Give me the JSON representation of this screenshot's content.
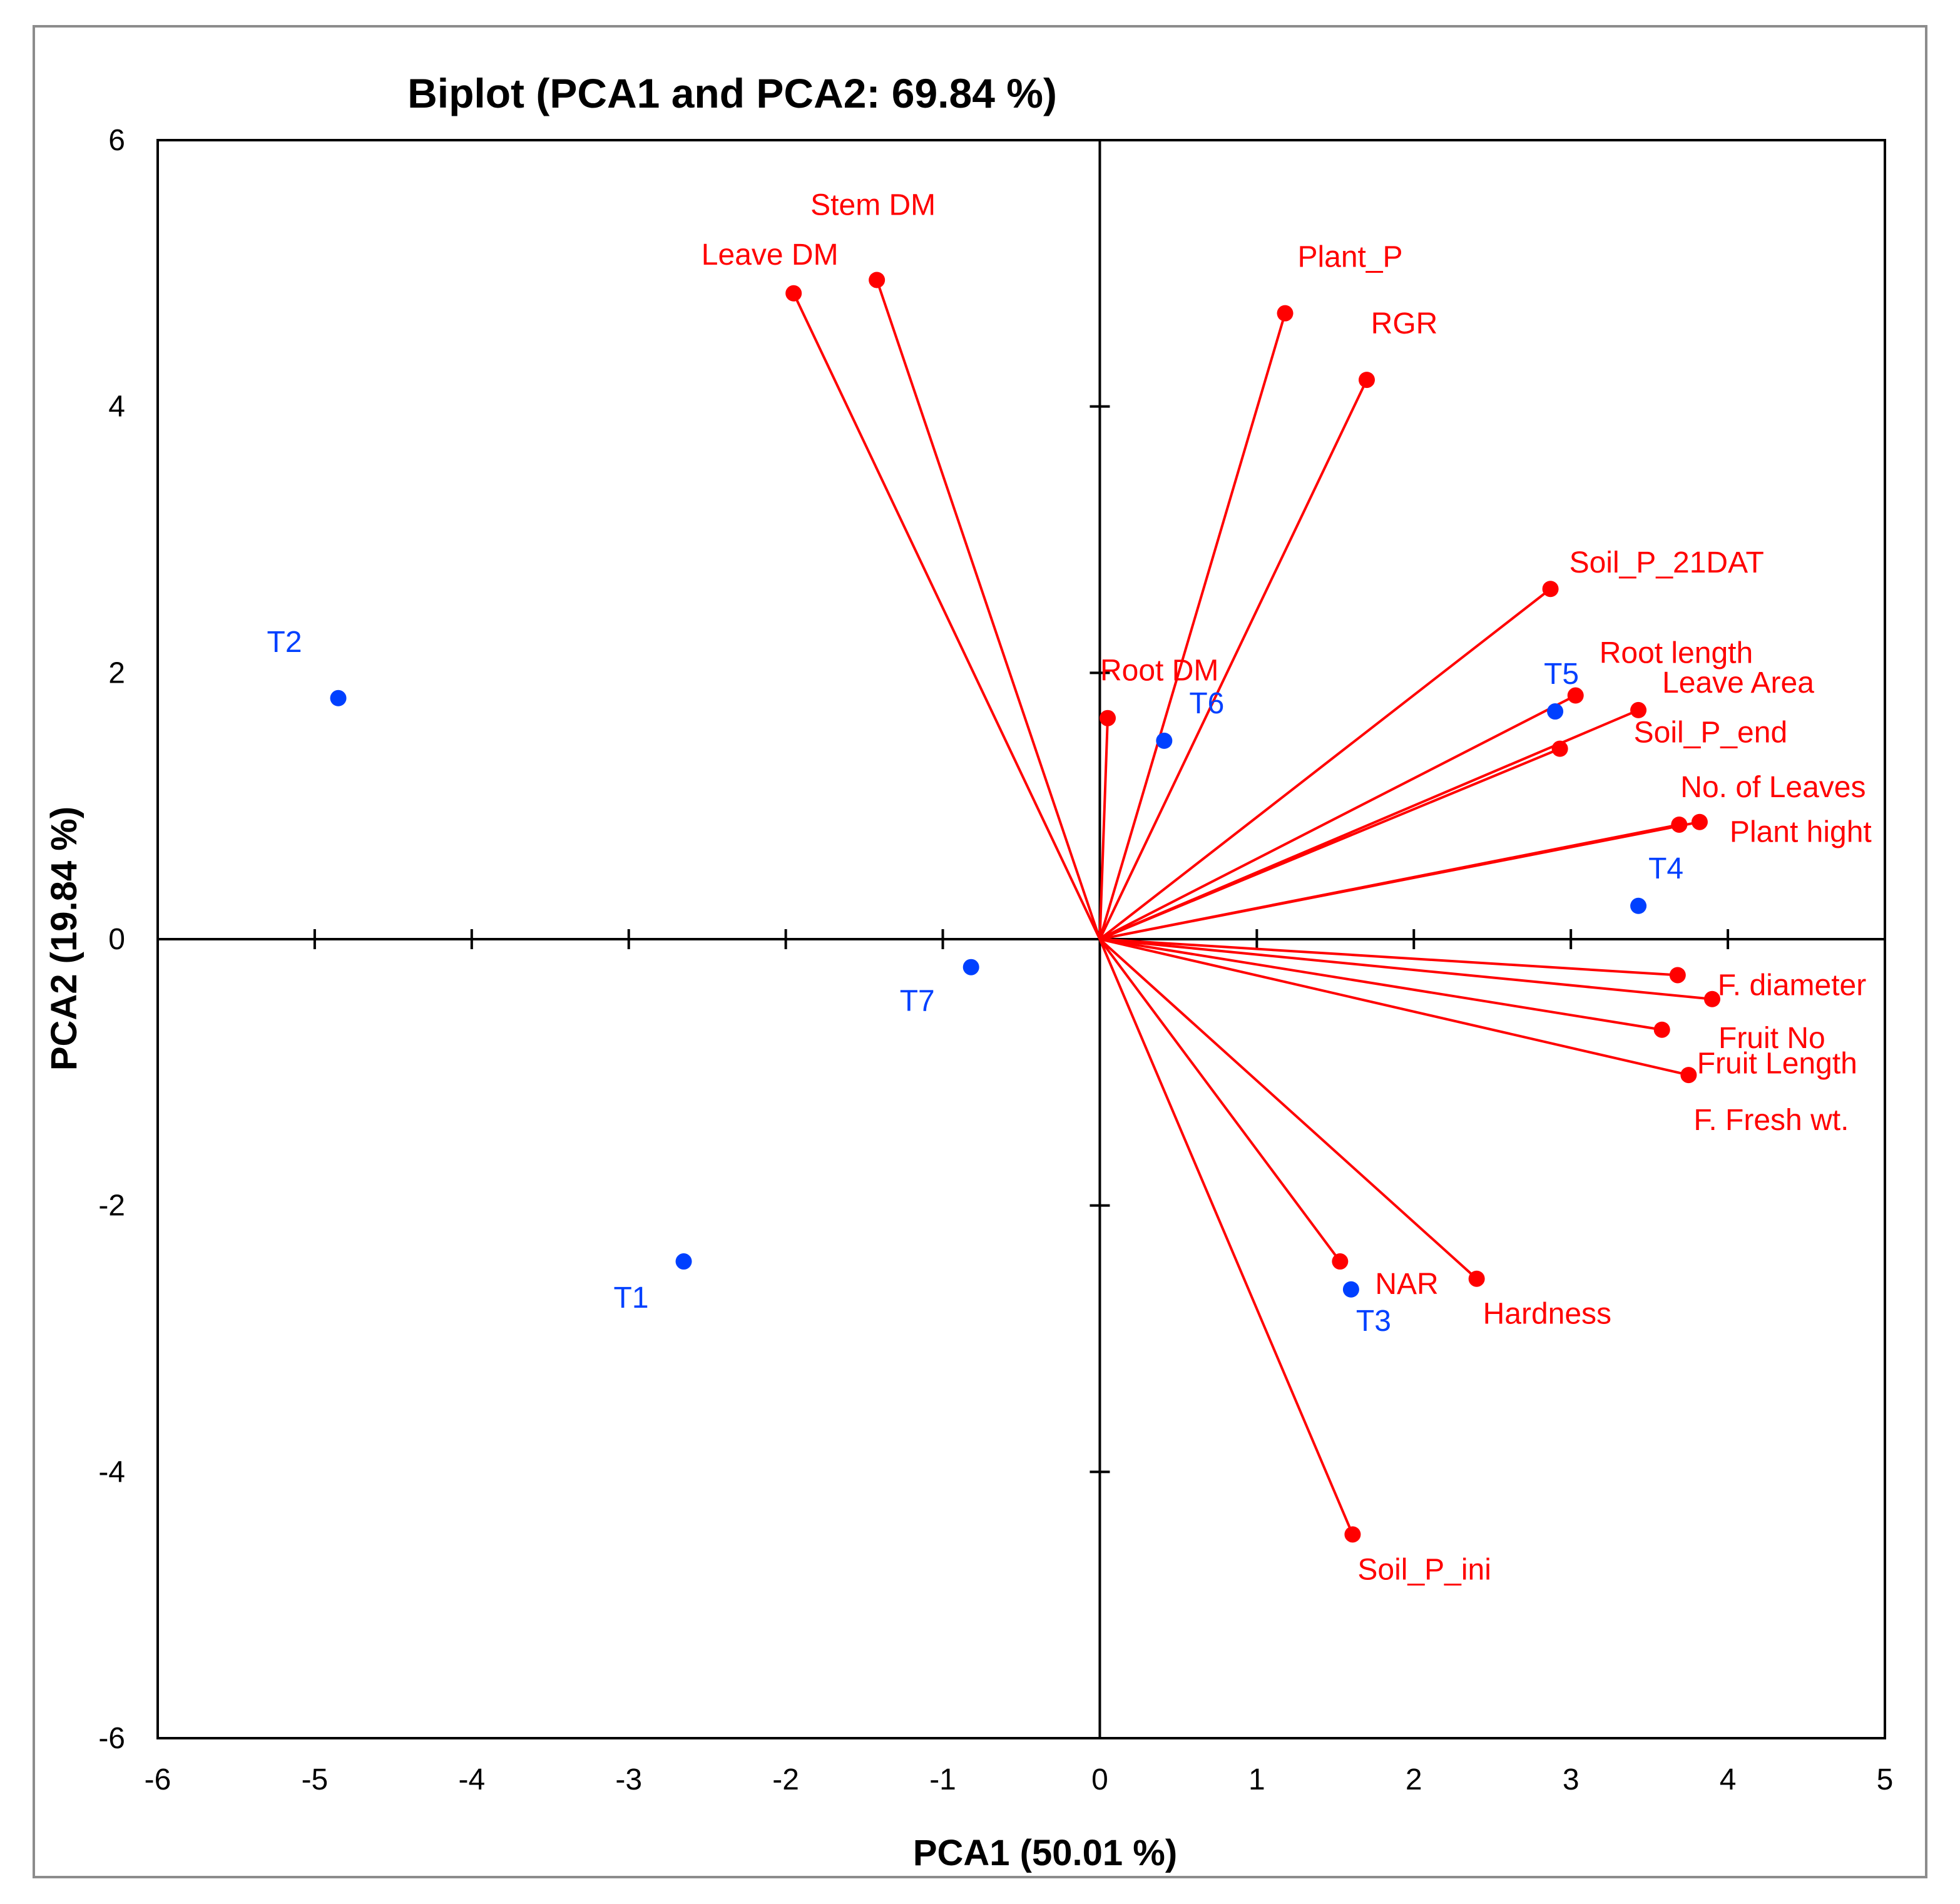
{
  "chart_data": {
    "type": "scatter",
    "subtype": "pca-biplot",
    "title": "Biplot (PCA1 and PCA2: 69.84 %)",
    "xlabel": "PCA1 (50.01 %)",
    "ylabel": "PCA2 (19.84 %)",
    "xlim": [
      -6,
      5
    ],
    "ylim": [
      -6,
      6
    ],
    "xticks": [
      -6,
      -5,
      -4,
      -3,
      -2,
      -1,
      0,
      1,
      2,
      3,
      4,
      5
    ],
    "yticks": [
      -6,
      -4,
      -2,
      0,
      2,
      4,
      6
    ],
    "grid": false,
    "colors": {
      "variables": "#ff0000",
      "treatments": "#0040ff",
      "axes": "#000000",
      "text": "#000000",
      "frame": "#8c8c8c"
    },
    "variables": [
      {
        "name": "Stem DM",
        "x": -1.42,
        "y": 4.95
      },
      {
        "name": "Leave DM",
        "x": -1.95,
        "y": 4.85
      },
      {
        "name": "Plant_P",
        "x": 1.18,
        "y": 4.7
      },
      {
        "name": "RGR",
        "x": 1.7,
        "y": 4.2
      },
      {
        "name": "Soil_P_21DAT",
        "x": 2.87,
        "y": 2.63
      },
      {
        "name": "Root length",
        "x": 3.03,
        "y": 1.83
      },
      {
        "name": "Leave Area",
        "x": 3.43,
        "y": 1.72
      },
      {
        "name": "Soil_P_end",
        "x": 2.93,
        "y": 1.43
      },
      {
        "name": "Root DM",
        "x": 0.05,
        "y": 1.66
      },
      {
        "name": "No. of Leaves",
        "x": 3.69,
        "y": 0.86
      },
      {
        "name": "Plant hight",
        "x": 3.82,
        "y": 0.88
      },
      {
        "name": "F. diameter",
        "x": 3.68,
        "y": -0.27
      },
      {
        "name": "Fruit No",
        "x": 3.9,
        "y": -0.45
      },
      {
        "name": "Fruit Length",
        "x": 3.58,
        "y": -0.68
      },
      {
        "name": "F. Fresh wt.",
        "x": 3.75,
        "y": -1.02
      },
      {
        "name": "NAR",
        "x": 1.53,
        "y": -2.42
      },
      {
        "name": "Hardness",
        "x": 2.4,
        "y": -2.55
      },
      {
        "name": "Soil_P_ini",
        "x": 1.61,
        "y": -4.47
      }
    ],
    "treatments": [
      {
        "name": "T1",
        "x": -2.65,
        "y": -2.42
      },
      {
        "name": "T2",
        "x": -4.85,
        "y": 1.81
      },
      {
        "name": "T3",
        "x": 1.6,
        "y": -2.63
      },
      {
        "name": "T4",
        "x": 3.43,
        "y": 0.25
      },
      {
        "name": "T5",
        "x": 2.9,
        "y": 1.71
      },
      {
        "name": "T6",
        "x": 0.41,
        "y": 1.49
      },
      {
        "name": "T7",
        "x": -0.82,
        "y": -0.21
      }
    ]
  }
}
